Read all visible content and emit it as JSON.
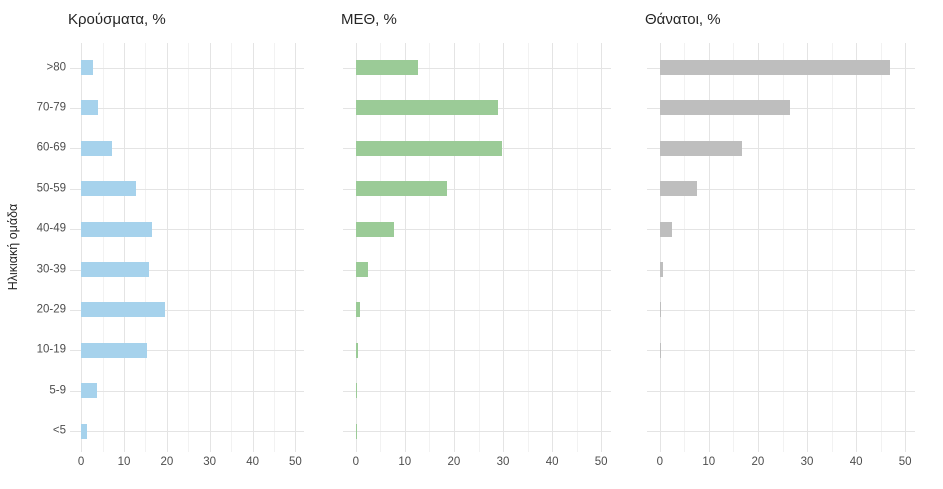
{
  "figure": {
    "y_axis_title": "Ηλικιακή ομάδα",
    "background_color": "#ffffff",
    "title_text_color": "#262626",
    "tick_text_color": "#4d4d4d",
    "gridline_major_color": "#e4e4e4",
    "gridline_minor_color": "#f2f2f2"
  },
  "chart_data": [
    {
      "type": "bar",
      "orientation": "horizontal",
      "title": "Κρούσματα, %",
      "bar_color": "#a6d2ec",
      "categories": [
        ">80",
        "70-79",
        "60-69",
        "50-59",
        "40-49",
        "30-39",
        "20-29",
        "10-19",
        "5-9",
        "<5"
      ],
      "values": [
        2.9,
        4.0,
        7.3,
        12.9,
        16.6,
        15.8,
        19.5,
        15.4,
        3.7,
        1.3
      ],
      "xlim": [
        0,
        50
      ],
      "xticks": [
        0,
        10,
        20,
        30,
        40,
        50
      ],
      "minor_gridlines": [
        5,
        15,
        25,
        35,
        45
      ],
      "ylabel": "Ηλικιακή ομάδα",
      "grid": true,
      "legend": false,
      "show_category_labels": true
    },
    {
      "type": "bar",
      "orientation": "horizontal",
      "title": "ΜΕΘ, %",
      "bar_color": "#9bcb97",
      "categories": [
        ">80",
        "70-79",
        "60-69",
        "50-59",
        "40-49",
        "30-39",
        "20-29",
        "10-19",
        "5-9",
        "<5"
      ],
      "values": [
        12.6,
        28.9,
        29.8,
        18.5,
        7.8,
        2.5,
        0.9,
        0.5,
        0.2,
        0.2
      ],
      "xlim": [
        0,
        50
      ],
      "xticks": [
        0,
        10,
        20,
        30,
        40,
        50
      ],
      "minor_gridlines": [
        5,
        15,
        25,
        35,
        45
      ],
      "ylabel": "",
      "grid": true,
      "legend": false,
      "show_category_labels": false
    },
    {
      "type": "bar",
      "orientation": "horizontal",
      "title": "Θάνατοι, %",
      "bar_color": "#bebebe",
      "categories": [
        ">80",
        "70-79",
        "60-69",
        "50-59",
        "40-49",
        "30-39",
        "20-29",
        "10-19",
        "5-9",
        "<5"
      ],
      "values": [
        46.9,
        26.5,
        16.8,
        7.6,
        2.5,
        0.7,
        0.2,
        0.2,
        0,
        0
      ],
      "xlim": [
        0,
        50
      ],
      "xticks": [
        0,
        10,
        20,
        30,
        40,
        50
      ],
      "minor_gridlines": [
        5,
        15,
        25,
        35,
        45
      ],
      "ylabel": "",
      "grid": true,
      "legend": false,
      "show_category_labels": false
    }
  ]
}
